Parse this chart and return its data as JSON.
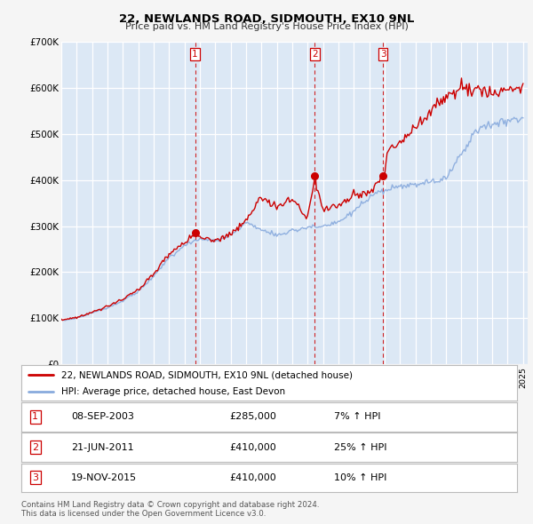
{
  "title": "22, NEWLANDS ROAD, SIDMOUTH, EX10 9NL",
  "subtitle": "Price paid vs. HM Land Registry's House Price Index (HPI)",
  "ylim": [
    0,
    700000
  ],
  "yticks": [
    0,
    100000,
    200000,
    300000,
    400000,
    500000,
    600000,
    700000
  ],
  "ytick_labels": [
    "£0",
    "£100K",
    "£200K",
    "£300K",
    "£400K",
    "£500K",
    "£600K",
    "£700K"
  ],
  "background_color": "#f5f5f5",
  "plot_bg_color": "#dce8f5",
  "grid_color": "#ffffff",
  "sale_dates": [
    2003.69,
    2011.47,
    2015.9
  ],
  "sale_prices": [
    285000,
    410000,
    410000
  ],
  "sale_labels": [
    "1",
    "2",
    "3"
  ],
  "legend_label_red": "22, NEWLANDS ROAD, SIDMOUTH, EX10 9NL (detached house)",
  "legend_label_blue": "HPI: Average price, detached house, East Devon",
  "table_rows": [
    [
      "1",
      "08-SEP-2003",
      "£285,000",
      "7% ↑ HPI"
    ],
    [
      "2",
      "21-JUN-2011",
      "£410,000",
      "25% ↑ HPI"
    ],
    [
      "3",
      "19-NOV-2015",
      "£410,000",
      "10% ↑ HPI"
    ]
  ],
  "footer": "Contains HM Land Registry data © Crown copyright and database right 2024.\nThis data is licensed under the Open Government Licence v3.0.",
  "red_color": "#cc0000",
  "blue_color": "#88aadd",
  "vline_color": "#cc0000",
  "dot_color": "#cc0000",
  "hpi_years": [
    1995,
    1996,
    1997,
    1998,
    1999,
    2000,
    2001,
    2002,
    2003,
    2004,
    2005,
    2006,
    2007,
    2008,
    2009,
    2010,
    2011,
    2012,
    2013,
    2014,
    2015,
    2016,
    2017,
    2018,
    2019,
    2020,
    2021,
    2022,
    2023,
    2024,
    2025
  ],
  "hpi_vals": [
    95000,
    100000,
    112000,
    123000,
    138000,
    158000,
    190000,
    232000,
    258000,
    272000,
    268000,
    280000,
    308000,
    292000,
    280000,
    290000,
    298000,
    298000,
    308000,
    332000,
    360000,
    378000,
    385000,
    390000,
    395000,
    405000,
    458000,
    510000,
    522000,
    530000,
    535000
  ],
  "red_years": [
    1995,
    1996,
    1997,
    1998,
    1999,
    2000,
    2001,
    2002,
    2003,
    2003.69,
    2004,
    2005,
    2006,
    2007,
    2008,
    2009,
    2010,
    2011,
    2011.47,
    2011.6,
    2012,
    2013,
    2014,
    2015,
    2015.9,
    2016,
    2016.2,
    2017,
    2018,
    2019,
    2020,
    2021,
    2022,
    2023,
    2024,
    2025
  ],
  "red_vals": [
    96000,
    101000,
    114000,
    125000,
    141000,
    162000,
    196000,
    238000,
    264000,
    285000,
    278000,
    268000,
    282000,
    312000,
    365000,
    340000,
    358000,
    320000,
    410000,
    385000,
    335000,
    345000,
    365000,
    370000,
    410000,
    410000,
    460000,
    480000,
    515000,
    550000,
    580000,
    595000,
    600000,
    590000,
    595000,
    600000
  ]
}
